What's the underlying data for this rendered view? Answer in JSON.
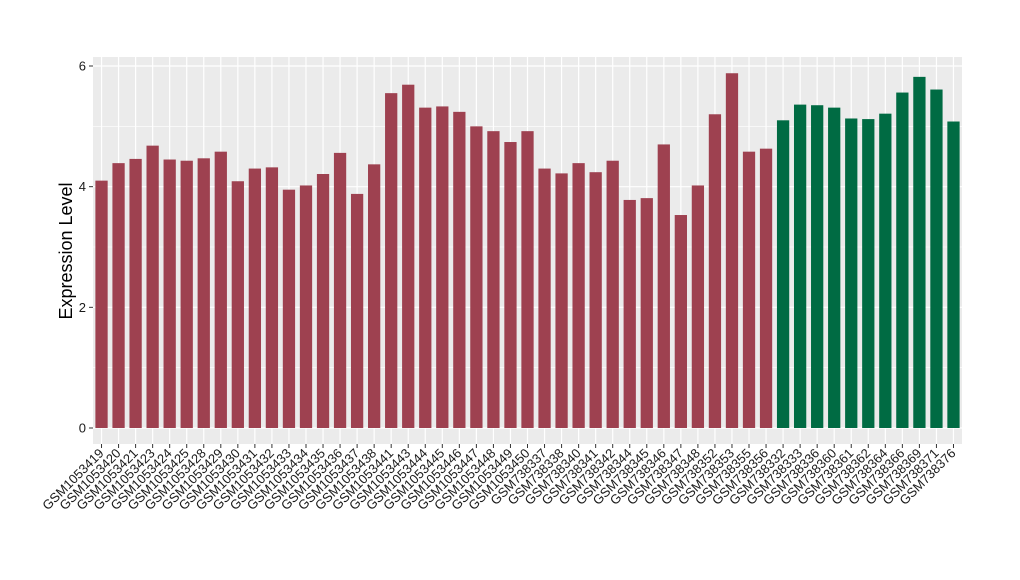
{
  "colors": {
    "panel_background": "#EBEBEB",
    "gridline": "#FFFFFF",
    "group_1": "#9E4150",
    "group_2": "#006B43"
  },
  "chart_data": {
    "type": "bar",
    "ylabel": "Expression Level",
    "xlabel": "",
    "ylim": [
      0,
      6.2
    ],
    "yticks": [
      0,
      2,
      4,
      6
    ],
    "grid": true,
    "legend": "none",
    "categories": [
      "GSM1053419",
      "GSM1053420",
      "GSM1053421",
      "GSM1053423",
      "GSM1053424",
      "GSM1053425",
      "GSM1053428",
      "GSM1053429",
      "GSM1053430",
      "GSM1053431",
      "GSM1053432",
      "GSM1053433",
      "GSM1053434",
      "GSM1053435",
      "GSM1053436",
      "GSM1053437",
      "GSM1053438",
      "GSM1053441",
      "GSM1053443",
      "GSM1053444",
      "GSM1053445",
      "GSM1053446",
      "GSM1053447",
      "GSM1053448",
      "GSM1053449",
      "GSM1053450",
      "GSM738337",
      "GSM738338",
      "GSM738340",
      "GSM738341",
      "GSM738342",
      "GSM738344",
      "GSM738345",
      "GSM738346",
      "GSM738347",
      "GSM738348",
      "GSM738352",
      "GSM738353",
      "GSM738355",
      "GSM738356",
      "GSM738332",
      "GSM738333",
      "GSM738336",
      "GSM738360",
      "GSM738361",
      "GSM738362",
      "GSM738364",
      "GSM738366",
      "GSM738369",
      "GSM738371",
      "GSM738376"
    ],
    "values": [
      4.1,
      4.39,
      4.46,
      4.68,
      4.45,
      4.43,
      4.47,
      4.58,
      4.09,
      4.3,
      4.32,
      3.95,
      4.02,
      4.21,
      4.56,
      3.88,
      4.37,
      5.55,
      5.69,
      5.31,
      5.33,
      5.24,
      5.0,
      4.92,
      4.74,
      4.92,
      4.3,
      4.22,
      4.39,
      4.24,
      4.43,
      3.78,
      3.81,
      4.7,
      3.53,
      4.02,
      5.2,
      5.88,
      4.58,
      4.63,
      5.1,
      5.36,
      5.35,
      5.31,
      5.13,
      5.12,
      5.21,
      5.56,
      5.82,
      5.61,
      5.08
    ],
    "groups": [
      1,
      1,
      1,
      1,
      1,
      1,
      1,
      1,
      1,
      1,
      1,
      1,
      1,
      1,
      1,
      1,
      1,
      1,
      1,
      1,
      1,
      1,
      1,
      1,
      1,
      1,
      1,
      1,
      1,
      1,
      1,
      1,
      1,
      1,
      1,
      1,
      1,
      1,
      1,
      1,
      2,
      2,
      2,
      2,
      2,
      2,
      2,
      2,
      2,
      2,
      2
    ]
  }
}
